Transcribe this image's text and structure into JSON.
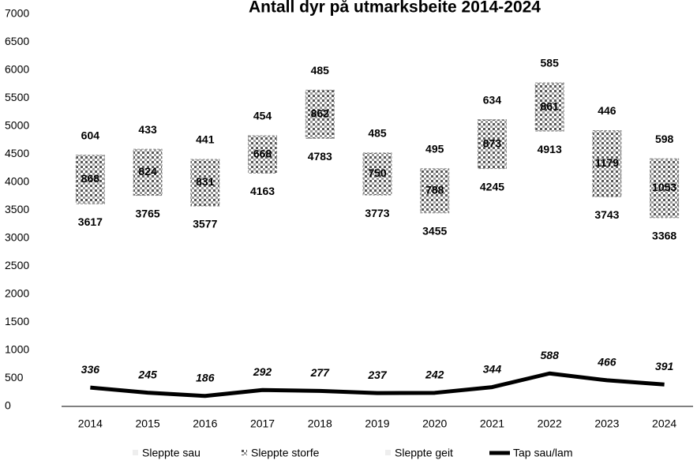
{
  "chart_data": {
    "type": "bar",
    "stacked": true,
    "title": "Antall dyr på utmarksbeite 2014-2024",
    "categories": [
      "2014",
      "2015",
      "2016",
      "2017",
      "2018",
      "2019",
      "2020",
      "2021",
      "2022",
      "2023",
      "2024"
    ],
    "series": [
      {
        "name": "Sleppte sau",
        "color": "none",
        "values": [
          3617,
          3765,
          3577,
          4163,
          4783,
          3773,
          3455,
          4245,
          4913,
          3743,
          3368
        ]
      },
      {
        "name": "Sleppte storfe",
        "color": "#555555",
        "values": [
          868,
          824,
          831,
          668,
          862,
          750,
          788,
          873,
          861,
          1179,
          1053
        ]
      },
      {
        "name": "Sleppte geit",
        "color": "none",
        "values": [
          604,
          433,
          441,
          454,
          485,
          485,
          495,
          634,
          585,
          446,
          598
        ]
      },
      {
        "name": "Tap sau/lam",
        "type": "line",
        "color": "#000000",
        "values": [
          336,
          245,
          186,
          292,
          277,
          237,
          242,
          344,
          588,
          466,
          391
        ]
      }
    ],
    "ylim": [
      0,
      7000
    ],
    "yticks": [
      0,
      500,
      1000,
      1500,
      2000,
      2500,
      3000,
      3500,
      4000,
      4500,
      5000,
      5500,
      6000,
      6500,
      7000
    ],
    "legend": "bottom"
  }
}
